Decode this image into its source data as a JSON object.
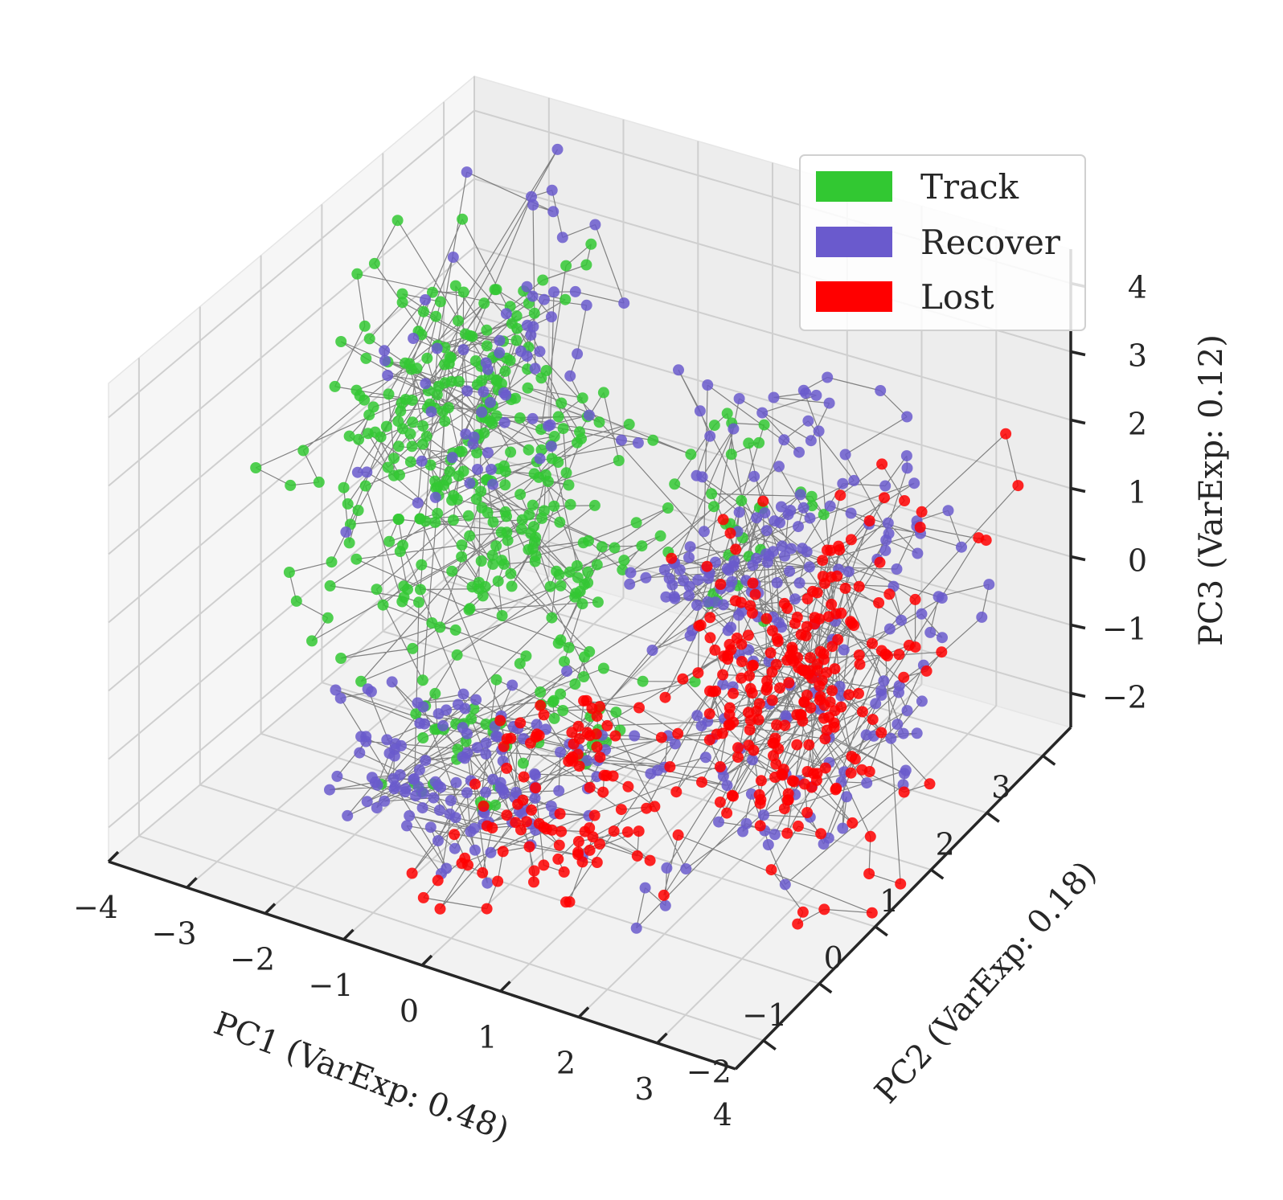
{
  "chart_data": {
    "type": "scatter",
    "projection": "3d",
    "xlabel": "PC1 (VarExp: 0.48)",
    "ylabel": "PC2 (VarExp: 0.18)",
    "zlabel": "PC3 (VarExp: 0.12)",
    "xlim": [
      -4,
      4
    ],
    "ylim": [
      -2.5,
      3.5
    ],
    "zlim": [
      -2.5,
      4.5
    ],
    "x_ticks": [
      "−4",
      "−3",
      "−2",
      "−1",
      "0",
      "1",
      "2",
      "3",
      "4"
    ],
    "y_ticks": [
      "−2",
      "−1",
      "0",
      "1",
      "2",
      "3"
    ],
    "z_ticks": [
      "−2",
      "−1",
      "0",
      "1",
      "2",
      "3",
      "4"
    ],
    "grid": true,
    "legend_position": "top-right",
    "connecting_lines": true,
    "line_color": "#6d6d6d",
    "series": [
      {
        "name": "Track",
        "color": "#32c832",
        "clusters": [
          {
            "center": [
              -2.5,
              1.5,
              2.0
            ],
            "spread": [
              1.0,
              1.0,
              1.2
            ],
            "count": 170
          },
          {
            "center": [
              -1.5,
              0.5,
              0.6
            ],
            "spread": [
              1.0,
              0.9,
              0.7
            ],
            "count": 160
          },
          {
            "center": [
              -0.5,
              -1.2,
              -0.6
            ],
            "spread": [
              0.8,
              0.7,
              0.6
            ],
            "count": 40
          },
          {
            "center": [
              1.0,
              1.0,
              0.8
            ],
            "spread": [
              1.2,
              1.0,
              0.8
            ],
            "count": 30
          }
        ]
      },
      {
        "name": "Recover",
        "color": "#6a5acd",
        "clusters": [
          {
            "center": [
              -0.5,
              -1.0,
              -1.0
            ],
            "spread": [
              1.0,
              0.8,
              0.7
            ],
            "count": 140
          },
          {
            "center": [
              1.5,
              1.5,
              1.0
            ],
            "spread": [
              1.4,
              1.0,
              1.0
            ],
            "count": 150
          },
          {
            "center": [
              -2.0,
              1.5,
              2.2
            ],
            "spread": [
              1.0,
              1.0,
              1.1
            ],
            "count": 70
          },
          {
            "center": [
              3.0,
              0.5,
              -0.5
            ],
            "spread": [
              0.8,
              1.2,
              1.2
            ],
            "count": 60
          }
        ]
      },
      {
        "name": "Lost",
        "color": "#ff0000",
        "clusters": [
          {
            "center": [
              2.5,
              0.5,
              0.0
            ],
            "spread": [
              1.0,
              1.3,
              1.3
            ],
            "count": 260
          },
          {
            "center": [
              0.8,
              -1.2,
              -0.8
            ],
            "spread": [
              0.9,
              0.7,
              0.7
            ],
            "count": 90
          }
        ]
      }
    ]
  },
  "legend": {
    "items": [
      {
        "label": "Track",
        "color": "#32c832"
      },
      {
        "label": "Recover",
        "color": "#6a5acd"
      },
      {
        "label": "Lost",
        "color": "#ff0000"
      }
    ]
  }
}
